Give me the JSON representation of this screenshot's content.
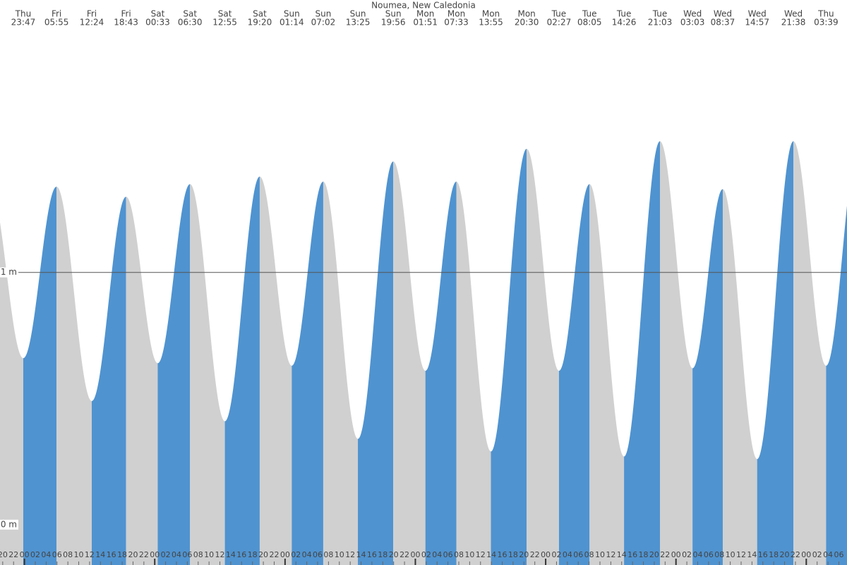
{
  "chart_data": {
    "type": "tide",
    "title": "Noumea, New Caledonia",
    "rising_color": "#4f93d0",
    "falling_color": "#d0d0d0",
    "xlim": [
      19.5,
      175.5
    ],
    "ylim": [
      -0.16,
      2.08
    ],
    "yticks": [
      {
        "value": 0,
        "label": "0 m"
      },
      {
        "value": 1,
        "label": "1 m"
      }
    ],
    "reference_line": 1,
    "xticks": [
      20,
      22,
      {
        "value": 24,
        "label": "00"
      },
      {
        "value": 26,
        "label": "02"
      },
      {
        "value": 28,
        "label": "04"
      },
      {
        "value": 30,
        "label": "06"
      },
      {
        "value": 32,
        "label": "08"
      },
      {
        "value": 34,
        "label": "10"
      },
      {
        "value": 36,
        "label": "12"
      },
      {
        "value": 38,
        "label": "14"
      },
      {
        "value": 40,
        "label": "16"
      },
      {
        "value": 42,
        "label": "18"
      },
      {
        "value": 44,
        "label": "20"
      },
      {
        "value": 46,
        "label": "22"
      },
      {
        "value": 48,
        "label": "00"
      },
      {
        "value": 50,
        "label": "02"
      },
      {
        "value": 52,
        "label": "04"
      },
      {
        "value": 54,
        "label": "06"
      },
      {
        "value": 56,
        "label": "08"
      },
      {
        "value": 58,
        "label": "10"
      },
      {
        "value": 60,
        "label": "12"
      },
      {
        "value": 62,
        "label": "14"
      },
      {
        "value": 64,
        "label": "16"
      },
      {
        "value": 66,
        "label": "18"
      },
      {
        "value": 68,
        "label": "20"
      },
      {
        "value": 70,
        "label": "22"
      },
      {
        "value": 72,
        "label": "00"
      },
      {
        "value": 74,
        "label": "02"
      },
      {
        "value": 76,
        "label": "04"
      },
      {
        "value": 78,
        "label": "06"
      },
      {
        "value": 80,
        "label": "08"
      },
      {
        "value": 82,
        "label": "10"
      },
      {
        "value": 84,
        "label": "12"
      },
      {
        "value": 86,
        "label": "14"
      },
      {
        "value": 88,
        "label": "16"
      },
      {
        "value": 90,
        "label": "18"
      },
      {
        "value": 92,
        "label": "20"
      },
      {
        "value": 94,
        "label": "22"
      },
      {
        "value": 96,
        "label": "00"
      },
      {
        "value": 98,
        "label": "02"
      },
      {
        "value": 100,
        "label": "04"
      },
      {
        "value": 102,
        "label": "06"
      },
      {
        "value": 104,
        "label": "08"
      },
      {
        "value": 106,
        "label": "10"
      },
      {
        "value": 108,
        "label": "12"
      },
      {
        "value": 110,
        "label": "14"
      },
      {
        "value": 112,
        "label": "16"
      },
      {
        "value": 114,
        "label": "18"
      },
      {
        "value": 116,
        "label": "20"
      },
      {
        "value": 118,
        "label": "22"
      },
      {
        "value": 120,
        "label": "00"
      },
      {
        "value": 122,
        "label": "02"
      },
      {
        "value": 124,
        "label": "04"
      },
      {
        "value": 126,
        "label": "06"
      },
      {
        "value": 128,
        "label": "08"
      },
      {
        "value": 130,
        "label": "10"
      },
      {
        "value": 132,
        "label": "12"
      },
      {
        "value": 134,
        "label": "14"
      },
      {
        "value": 136,
        "label": "16"
      },
      {
        "value": 138,
        "label": "18"
      },
      {
        "value": 140,
        "label": "20"
      },
      {
        "value": 142,
        "label": "22"
      },
      {
        "value": 144,
        "label": "00"
      },
      {
        "value": 146,
        "label": "02"
      },
      {
        "value": 148,
        "label": "04"
      },
      {
        "value": 150,
        "label": "06"
      },
      {
        "value": 152,
        "label": "08"
      },
      {
        "value": 154,
        "label": "10"
      },
      {
        "value": 156,
        "label": "12"
      },
      {
        "value": 158,
        "label": "14"
      },
      {
        "value": 160,
        "label": "16"
      },
      {
        "value": 162,
        "label": "18"
      },
      {
        "value": 164,
        "label": "20"
      },
      {
        "value": 166,
        "label": "22"
      },
      {
        "value": 168,
        "label": "00"
      },
      {
        "value": 170,
        "label": "02"
      },
      {
        "value": 172,
        "label": "04"
      },
      {
        "value": 174,
        "label": "06"
      }
    ],
    "extremes": [
      {
        "day": "Thu",
        "time": "23:47",
        "x": 23.783,
        "height": 0.66
      },
      {
        "day": "Fri",
        "time": "05:55",
        "x": 29.917,
        "height": 1.34
      },
      {
        "day": "Fri",
        "time": "12:24",
        "x": 36.4,
        "height": 0.49
      },
      {
        "day": "Fri",
        "time": "18:43",
        "x": 42.717,
        "height": 1.3
      },
      {
        "day": "Sat",
        "time": "00:33",
        "x": 48.55,
        "height": 0.64
      },
      {
        "day": "Sat",
        "time": "06:30",
        "x": 54.5,
        "height": 1.35
      },
      {
        "day": "Sat",
        "time": "12:55",
        "x": 60.917,
        "height": 0.41
      },
      {
        "day": "Sat",
        "time": "19:20",
        "x": 67.333,
        "height": 1.38
      },
      {
        "day": "Sun",
        "time": "01:14",
        "x": 73.233,
        "height": 0.63
      },
      {
        "day": "Sun",
        "time": "07:02",
        "x": 79.033,
        "height": 1.36
      },
      {
        "day": "Sun",
        "time": "13:25",
        "x": 85.417,
        "height": 0.34
      },
      {
        "day": "Sun",
        "time": "19:56",
        "x": 91.933,
        "height": 1.44
      },
      {
        "day": "Mon",
        "time": "01:51",
        "x": 97.85,
        "height": 0.61
      },
      {
        "day": "Mon",
        "time": "07:33",
        "x": 103.55,
        "height": 1.36
      },
      {
        "day": "Mon",
        "time": "13:55",
        "x": 109.917,
        "height": 0.29
      },
      {
        "day": "Mon",
        "time": "20:30",
        "x": 116.5,
        "height": 1.49
      },
      {
        "day": "Tue",
        "time": "02:27",
        "x": 122.45,
        "height": 0.61
      },
      {
        "day": "Tue",
        "time": "08:05",
        "x": 128.083,
        "height": 1.35
      },
      {
        "day": "Tue",
        "time": "14:26",
        "x": 134.433,
        "height": 0.27
      },
      {
        "day": "Tue",
        "time": "21:03",
        "x": 141.05,
        "height": 1.52
      },
      {
        "day": "Wed",
        "time": "03:03",
        "x": 147.05,
        "height": 0.62
      },
      {
        "day": "Wed",
        "time": "08:37",
        "x": 152.617,
        "height": 1.33
      },
      {
        "day": "Wed",
        "time": "14:57",
        "x": 158.95,
        "height": 0.26
      },
      {
        "day": "Wed",
        "time": "21:38",
        "x": 165.633,
        "height": 1.52
      },
      {
        "day": "Thu",
        "time": "03:39",
        "x": 171.65,
        "height": 0.63
      }
    ]
  }
}
